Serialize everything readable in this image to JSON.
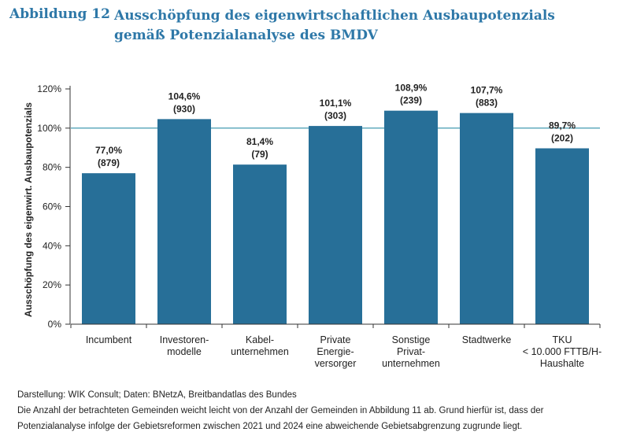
{
  "figure": {
    "label": "Abbildung 12",
    "title": "Ausschöpfung des eigenwirtschaftlichen Ausbaupotenzials gemäß Potenzialanalyse des BMDV"
  },
  "chart_data": {
    "type": "bar",
    "ylabel": "Ausschöpfung des eigenwirt. Ausbaupotenzials",
    "ylim": [
      0,
      120
    ],
    "yticks": [
      0,
      20,
      40,
      60,
      80,
      100,
      120
    ],
    "ytick_labels": [
      "0%",
      "20%",
      "40%",
      "60%",
      "80%",
      "100%",
      "120%"
    ],
    "reference_line": 100,
    "bar_color": "#276f98",
    "reference_color": "#2e8fa8",
    "categories": [
      [
        "Incumbent"
      ],
      [
        "Investoren-",
        "modelle"
      ],
      [
        "Kabel-",
        "unternehmen"
      ],
      [
        "Private",
        "Energie-",
        "versorger"
      ],
      [
        "Sonstige",
        "Privat-",
        "unternehmen"
      ],
      [
        "Stadtwerke"
      ],
      [
        "TKU",
        "< 10.000 FTTB/H-",
        "Haushalte"
      ]
    ],
    "values": [
      77.0,
      104.6,
      81.4,
      101.1,
      108.9,
      107.7,
      89.7
    ],
    "value_labels": [
      "77,0%",
      "104,6%",
      "81,4%",
      "101,1%",
      "108,9%",
      "107,7%",
      "89,7%"
    ],
    "counts": [
      "(879)",
      "(930)",
      "(79)",
      "(303)",
      "(239)",
      "(883)",
      "(202)"
    ]
  },
  "notes": {
    "source": "Darstellung: WIK Consult; Daten: BNetzA, Breitbandatlas des Bundes",
    "line1": "Die Anzahl der betrachteten Gemeinden weicht leicht von der Anzahl der Gemeinden in Abbildung 11 ab. Grund hierfür ist, dass der",
    "line2": "Potenzialanalyse infolge der Gebietsreformen zwischen 2021 und 2024 eine abweichende Gebietsabgrenzung zugrunde liegt."
  }
}
